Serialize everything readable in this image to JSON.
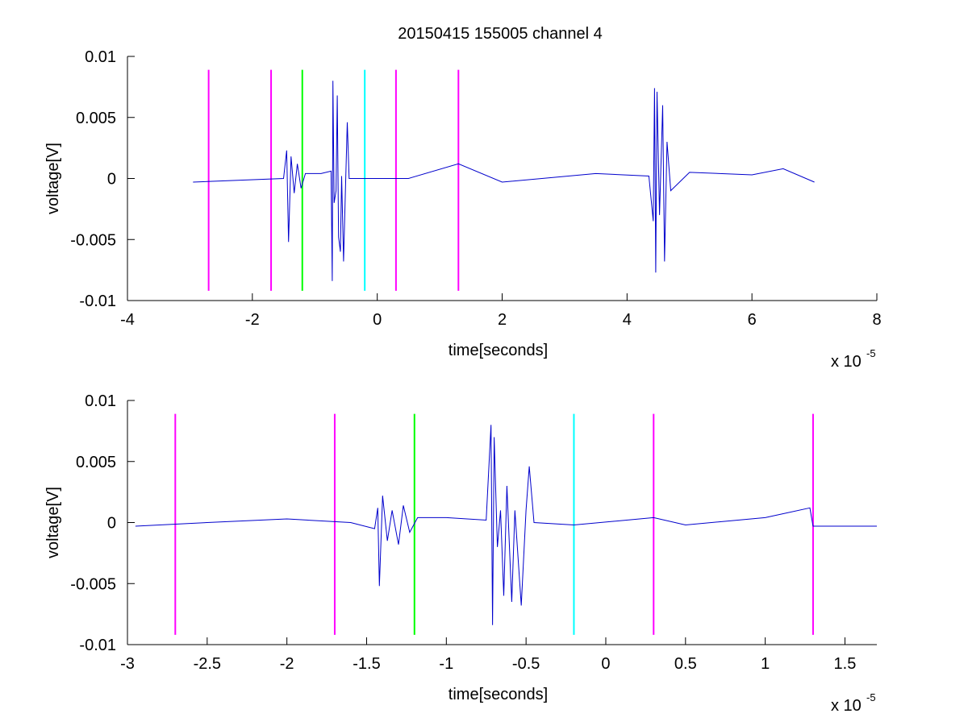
{
  "figure": {
    "title": "20150415 155005 channel 4"
  },
  "chart_data": [
    {
      "type": "line",
      "title": "20150415 155005 channel 4",
      "xlabel": "time[seconds]",
      "ylabel": "voltage[V]",
      "x_scale_label": "x 10",
      "x_scale_exponent": "-5",
      "xlim": [
        -4,
        8
      ],
      "ylim": [
        -0.01,
        0.01
      ],
      "xticks": [
        -4,
        -2,
        0,
        2,
        4,
        6,
        8
      ],
      "xtick_labels": [
        "-4",
        "-2",
        "0",
        "2",
        "4",
        "6",
        "8"
      ],
      "yticks": [
        -0.01,
        -0.005,
        0,
        0.005,
        0.01
      ],
      "ytick_labels": [
        "-0.01",
        "-0.005",
        "0",
        "0.005",
        "0.01"
      ],
      "grid": false,
      "series": [
        {
          "color": "#0000cc",
          "points": [
            [
              -2.95,
              -0.0003
            ],
            [
              -1.5,
              0.0
            ],
            [
              -1.45,
              0.0023
            ],
            [
              -1.42,
              -0.0052
            ],
            [
              -1.38,
              0.0018
            ],
            [
              -1.33,
              -0.0012
            ],
            [
              -1.28,
              0.0012
            ],
            [
              -1.22,
              -0.0008
            ],
            [
              -1.15,
              0.0004
            ],
            [
              -0.9,
              0.0004
            ],
            [
              -0.74,
              0.0006
            ],
            [
              -0.72,
              -0.0084
            ],
            [
              -0.71,
              0.008
            ],
            [
              -0.69,
              -0.002
            ],
            [
              -0.66,
              -0.001
            ],
            [
              -0.64,
              0.0068
            ],
            [
              -0.62,
              -0.0048
            ],
            [
              -0.59,
              -0.006
            ],
            [
              -0.57,
              0.0002
            ],
            [
              -0.54,
              -0.0068
            ],
            [
              -0.51,
              -0.001
            ],
            [
              -0.48,
              0.0046
            ],
            [
              -0.45,
              0.0
            ],
            [
              0.5,
              0.0
            ],
            [
              1.3,
              0.0012
            ],
            [
              2.0,
              -0.0003
            ],
            [
              3.5,
              0.0004
            ],
            [
              4.35,
              0.0002
            ],
            [
              4.42,
              -0.0035
            ],
            [
              4.44,
              0.0074
            ],
            [
              4.46,
              -0.0077
            ],
            [
              4.48,
              0.0071
            ],
            [
              4.52,
              -0.003
            ],
            [
              4.57,
              0.006
            ],
            [
              4.6,
              -0.0068
            ],
            [
              4.64,
              0.003
            ],
            [
              4.7,
              -0.001
            ],
            [
              5.0,
              0.0005
            ],
            [
              6.0,
              0.0003
            ],
            [
              6.5,
              0.0008
            ],
            [
              7.0,
              -0.0003
            ]
          ]
        }
      ],
      "markers": [
        {
          "x": -2.7,
          "color": "#ff00ff"
        },
        {
          "x": -1.7,
          "color": "#ff00ff"
        },
        {
          "x": -1.2,
          "color": "#00ff00"
        },
        {
          "x": -0.2,
          "color": "#00ffff"
        },
        {
          "x": 0.3,
          "color": "#ff00ff"
        },
        {
          "x": 1.3,
          "color": "#ff00ff"
        }
      ],
      "marker_yrange": [
        -0.0092,
        0.0089
      ]
    },
    {
      "type": "line",
      "title": "",
      "xlabel": "time[seconds]",
      "ylabel": "voltage[V]",
      "x_scale_label": "x 10",
      "x_scale_exponent": "-5",
      "xlim": [
        -3.0,
        1.7
      ],
      "ylim": [
        -0.01,
        0.01
      ],
      "xticks": [
        -3,
        -2.5,
        -2,
        -1.5,
        -1,
        -0.5,
        0,
        0.5,
        1,
        1.5
      ],
      "xtick_labels": [
        "-3",
        "-2.5",
        "-2",
        "-1.5",
        "-1",
        "-0.5",
        "0",
        "0.5",
        "1",
        "1.5"
      ],
      "yticks": [
        -0.01,
        -0.005,
        0,
        0.005,
        0.01
      ],
      "ytick_labels": [
        "-0.01",
        "-0.005",
        "0",
        "0.005",
        "0.01"
      ],
      "grid": false,
      "series": [
        {
          "color": "#0000cc",
          "points": [
            [
              -2.95,
              -0.0003
            ],
            [
              -2.5,
              0.0
            ],
            [
              -2.0,
              0.0003
            ],
            [
              -1.6,
              0.0
            ],
            [
              -1.45,
              -0.0005
            ],
            [
              -1.43,
              0.0012
            ],
            [
              -1.42,
              -0.0052
            ],
            [
              -1.4,
              0.0022
            ],
            [
              -1.37,
              -0.0015
            ],
            [
              -1.34,
              0.001
            ],
            [
              -1.3,
              -0.0018
            ],
            [
              -1.27,
              0.0014
            ],
            [
              -1.23,
              -0.0008
            ],
            [
              -1.18,
              0.0004
            ],
            [
              -1.0,
              0.0004
            ],
            [
              -0.75,
              0.0002
            ],
            [
              -0.72,
              0.008
            ],
            [
              -0.71,
              -0.0084
            ],
            [
              -0.7,
              0.007
            ],
            [
              -0.68,
              -0.002
            ],
            [
              -0.66,
              0.001
            ],
            [
              -0.64,
              -0.006
            ],
            [
              -0.62,
              0.003
            ],
            [
              -0.59,
              -0.0065
            ],
            [
              -0.57,
              0.001
            ],
            [
              -0.53,
              -0.0068
            ],
            [
              -0.5,
              0.001
            ],
            [
              -0.48,
              0.0046
            ],
            [
              -0.45,
              0.0
            ],
            [
              -0.2,
              -0.0002
            ],
            [
              0.3,
              0.0004
            ],
            [
              0.5,
              -0.0002
            ],
            [
              1.0,
              0.0004
            ],
            [
              1.28,
              0.0012
            ],
            [
              1.3,
              -0.0003
            ],
            [
              1.7,
              -0.0003
            ]
          ]
        }
      ],
      "markers": [
        {
          "x": -2.7,
          "color": "#ff00ff"
        },
        {
          "x": -1.7,
          "color": "#ff00ff"
        },
        {
          "x": -1.2,
          "color": "#00ff00"
        },
        {
          "x": -0.2,
          "color": "#00ffff"
        },
        {
          "x": 0.3,
          "color": "#ff00ff"
        },
        {
          "x": 1.3,
          "color": "#ff00ff"
        }
      ],
      "marker_yrange": [
        -0.0092,
        0.0089
      ]
    }
  ]
}
